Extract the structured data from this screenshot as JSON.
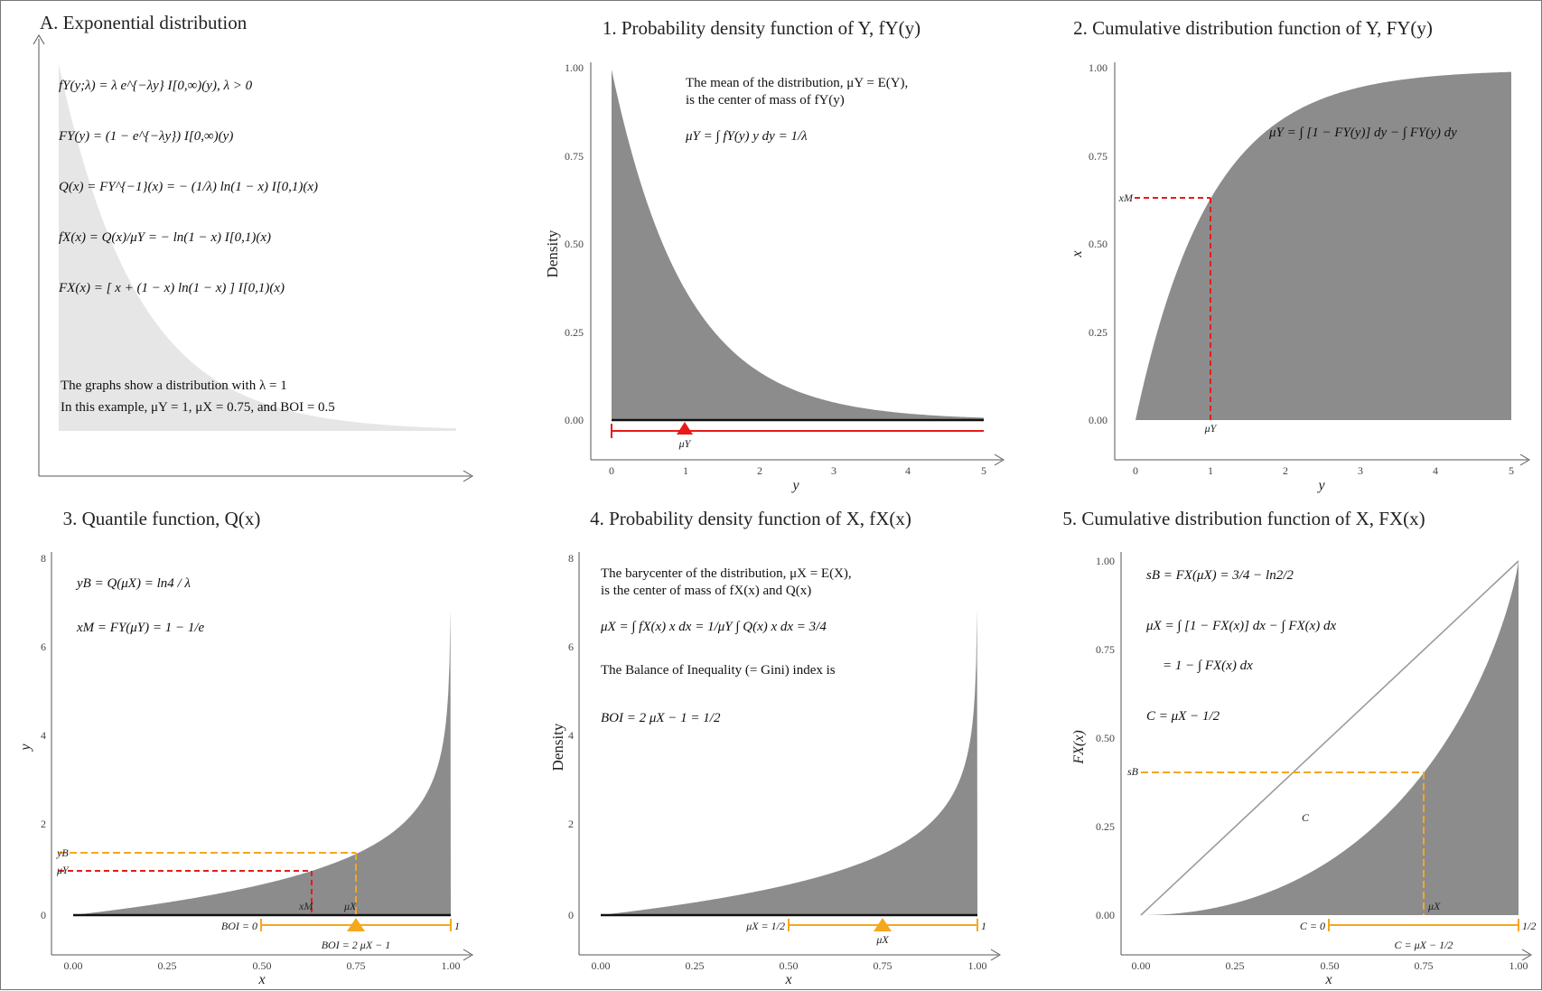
{
  "colors": {
    "area": "#8c8c8c",
    "light_area": "#e6e6e6",
    "red": "#e81a1a",
    "orange": "#f4a81d",
    "axis": "#555555",
    "diag": "#9a9a9a"
  },
  "panelA": {
    "title": "A. Exponential distribution",
    "formulas": [
      "fY(y;λ) = λ e^{−λy} I[0,∞)(y), λ > 0",
      "FY(y) = (1 − e^{−λy}) I[0,∞)(y)",
      "Q(x) = FY^{−1}(x) = − (1/λ) ln(1 − x) I[0,1)(x)",
      "fX(x) = Q(x)/μY = − ln(1 − x) I[0,1)(x)",
      "FX(x) = [ x + (1 − x) ln(1 − x) ] I[0,1)(x)"
    ],
    "note1": "The graphs show a distribution with λ = 1",
    "note2": "In this example, μY = 1, μX = 0.75, and BOI = 0.5"
  },
  "chart_data": [
    {
      "id": "p1",
      "type": "area",
      "title": "1. Probability density function of Y, fY(y)",
      "xlabel": "y",
      "ylabel": "Density",
      "xlim": [
        0,
        5
      ],
      "ylim": [
        0,
        1
      ],
      "x_ticks": [
        "0",
        "1",
        "2",
        "3",
        "4",
        "5"
      ],
      "y_ticks": [
        "0.00",
        "0.25",
        "0.50",
        "0.75",
        "1.00"
      ],
      "function": "exp(-x)",
      "annotations": [
        "The mean of the distribution, μY = E(Y),",
        "is the center of mass of fY(y)",
        "μY = ∫ fY(y) y dy = 1/λ"
      ],
      "markers": [
        {
          "label": "μY",
          "x": 1
        }
      ]
    },
    {
      "id": "p2",
      "type": "area",
      "title": "2. Cumulative distribution function of Y, FY(y)",
      "xlabel": "y",
      "ylabel": "x",
      "xlim": [
        0,
        5
      ],
      "ylim": [
        0,
        1
      ],
      "x_ticks": [
        "0",
        "1",
        "2",
        "3",
        "4",
        "5"
      ],
      "y_ticks": [
        "0.00",
        "0.25",
        "0.50",
        "0.75",
        "1.00"
      ],
      "function": "1-exp(-x)",
      "annotations": [
        "μY = ∫ [1 − FY(y)] dy − ∫ FY(y) dy"
      ],
      "markers": [
        {
          "label": "xM",
          "y": 0.632
        },
        {
          "label": "μY",
          "x": 1
        }
      ]
    },
    {
      "id": "p3",
      "type": "area",
      "title": "3. Quantile function, Q(x)",
      "xlabel": "x",
      "ylabel": "y",
      "xlim": [
        0,
        1
      ],
      "ylim": [
        0,
        8
      ],
      "x_ticks": [
        "0.00",
        "0.25",
        "0.50",
        "0.75",
        "1.00"
      ],
      "y_ticks": [
        "0",
        "2",
        "4",
        "6",
        "8"
      ],
      "function": "-ln(1-x)",
      "annotations": [
        "yB = Q(μX) = ln4 / λ",
        "xM = FY(μY) = 1 − 1/e"
      ],
      "markers": [
        {
          "label": "yB",
          "y": 1.386
        },
        {
          "label": "μY",
          "y": 1
        },
        {
          "label": "xM",
          "x": 0.632
        },
        {
          "label": "μX",
          "x": 0.75
        }
      ],
      "boi": {
        "left": "BOI = 0",
        "right": "1",
        "below": "BOI = 2 μX − 1"
      }
    },
    {
      "id": "p4",
      "type": "area",
      "title": "4. Probability density function of X, fX(x)",
      "xlabel": "x",
      "ylabel": "Density",
      "xlim": [
        0,
        1
      ],
      "ylim": [
        0,
        8
      ],
      "x_ticks": [
        "0.00",
        "0.25",
        "0.50",
        "0.75",
        "1.00"
      ],
      "y_ticks": [
        "0",
        "2",
        "4",
        "6",
        "8"
      ],
      "function": "-ln(1-x)",
      "annotations": [
        "The barycenter of the distribution, μX = E(X),",
        "is the center of mass of fX(x) and Q(x)",
        "μX = ∫ fX(x) x dx = 1/μY ∫ Q(x) x dx = 3/4",
        "The Balance of Inequality (= Gini) index is",
        "BOI = 2 μX − 1 = 1/2"
      ],
      "markers": [
        {
          "label": "μX",
          "x": 0.75
        }
      ],
      "boi": {
        "left": "μX = 1/2",
        "right": "1"
      }
    },
    {
      "id": "p5",
      "type": "area",
      "title": "5. Cumulative distribution function of X, FX(x)",
      "xlabel": "x",
      "ylabel": "FX(x)",
      "xlim": [
        0,
        1
      ],
      "ylim": [
        0,
        1
      ],
      "x_ticks": [
        "0.00",
        "0.25",
        "0.50",
        "0.75",
        "1.00"
      ],
      "y_ticks": [
        "0.00",
        "0.25",
        "0.50",
        "0.75",
        "1.00"
      ],
      "function": "x+(1-x)ln(1-x)",
      "annotations": [
        "sB = FX(μX) = 3/4 − ln2/2",
        "μX = ∫ [1 − FX(x)] dx − ∫ FX(x) dx",
        "= 1 − ∫ FX(x) dx",
        "C = μX − 1/2"
      ],
      "markers": [
        {
          "label": "sB",
          "y": 0.403
        },
        {
          "label": "μX",
          "x": 0.75
        },
        {
          "label": "C",
          "x": 0.44,
          "y": 0.27
        }
      ],
      "boi": {
        "left": "C = 0",
        "right": "1/2",
        "below": "C = μX − 1/2"
      }
    }
  ]
}
